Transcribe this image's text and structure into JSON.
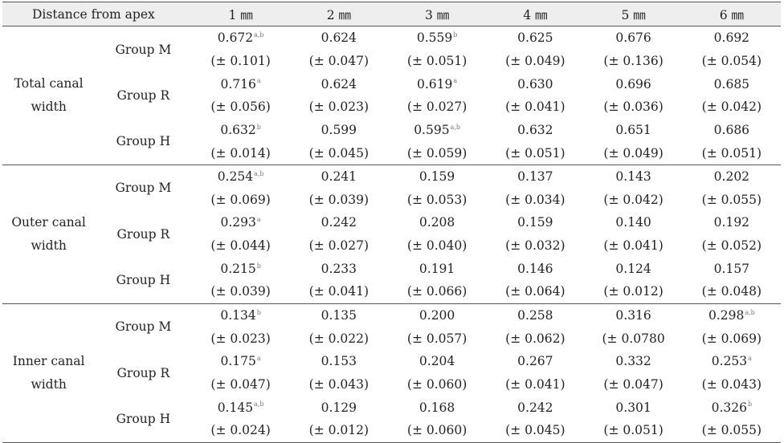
{
  "header": {
    "label": "Distance from apex",
    "distances": [
      "1 ㎜",
      "2 ㎜",
      "3 ㎜",
      "4 ㎜",
      "5 ㎜",
      "6 ㎜"
    ]
  },
  "sections": [
    {
      "metric_line1": "Total canal",
      "metric_line2": "width",
      "groups": [
        {
          "name": "Group M",
          "means": [
            "0.672",
            "0.624",
            "0.559",
            "0.625",
            "0.676",
            "0.692"
          ],
          "sups": [
            "a,b",
            "",
            "b",
            "",
            "",
            ""
          ],
          "sds": [
            "(± 0.101)",
            "(± 0.047)",
            "(± 0.051)",
            "(± 0.049)",
            "(± 0.136)",
            "(± 0.054)"
          ]
        },
        {
          "name": "Group R",
          "means": [
            "0.716",
            "0.624",
            "0.619",
            "0.630",
            "0.696",
            "0.685"
          ],
          "sups": [
            "a",
            "",
            "a",
            "",
            "",
            ""
          ],
          "sds": [
            "(± 0.056)",
            "(± 0.023)",
            "(± 0.027)",
            "(± 0.041)",
            "(± 0.036)",
            "(± 0.042)"
          ]
        },
        {
          "name": "Group H",
          "means": [
            "0.632",
            "0.599",
            "0.595",
            "0.632",
            "0.651",
            "0.686"
          ],
          "sups": [
            "b",
            "",
            "a,b",
            "",
            "",
            ""
          ],
          "sds": [
            "(± 0.014)",
            "(± 0.045)",
            "(± 0.059)",
            "(± 0.051)",
            "(± 0.049)",
            "(± 0.051)"
          ]
        }
      ]
    },
    {
      "metric_line1": "Outer canal",
      "metric_line2": "width",
      "groups": [
        {
          "name": "Group M",
          "means": [
            "0.254",
            "0.241",
            "0.159",
            "0.137",
            "0.143",
            "0.202"
          ],
          "sups": [
            "a,b",
            "",
            "",
            "",
            "",
            ""
          ],
          "sds": [
            "(± 0.069)",
            "(± 0.039)",
            "(± 0.053)",
            "(± 0.034)",
            "(± 0.042)",
            "(± 0.055)"
          ]
        },
        {
          "name": "Group R",
          "means": [
            "0.293",
            "0.242",
            "0.208",
            "0.159",
            "0.140",
            "0.192"
          ],
          "sups": [
            "a",
            "",
            "",
            "",
            "",
            ""
          ],
          "sds": [
            "(± 0.044)",
            "(± 0.027)",
            "(± 0.040)",
            "(± 0.032)",
            "(± 0.041)",
            "(± 0.052)"
          ]
        },
        {
          "name": "Group H",
          "means": [
            "0.215",
            "0.233",
            "0.191",
            "0.146",
            "0.124",
            "0.157"
          ],
          "sups": [
            "b",
            "",
            "",
            "",
            "",
            ""
          ],
          "sds": [
            "(± 0.039)",
            "(± 0.041)",
            "(± 0.066)",
            "(± 0.064)",
            "(± 0.012)",
            "(± 0.048)"
          ]
        }
      ]
    },
    {
      "metric_line1": "Inner canal",
      "metric_line2": "width",
      "groups": [
        {
          "name": "Group M",
          "means": [
            "0.134",
            "0.135",
            "0.200",
            "0.258",
            "0.316",
            "0.298"
          ],
          "sups": [
            "b",
            "",
            "",
            "",
            "",
            "a,b"
          ],
          "sds": [
            "(± 0.023)",
            "(± 0.022)",
            "(± 0.057)",
            "(± 0.062)",
            "(± 0.0780",
            "(± 0.069)"
          ]
        },
        {
          "name": "Group R",
          "means": [
            "0.175",
            "0.153",
            "0.204",
            "0.267",
            "0.332",
            "0.253"
          ],
          "sups": [
            "a",
            "",
            "",
            "",
            "",
            "a"
          ],
          "sds": [
            "(± 0.047)",
            "(± 0.043)",
            "(± 0.060)",
            "(± 0.041)",
            "(± 0.047)",
            "(± 0.043)"
          ]
        },
        {
          "name": "Group H",
          "means": [
            "0.145",
            "0.129",
            "0.168",
            "0.242",
            "0.301",
            "0.326"
          ],
          "sups": [
            "a,b",
            "",
            "",
            "",
            "",
            "b"
          ],
          "sds": [
            "(± 0.024)",
            "(± 0.012)",
            "(± 0.060)",
            "(± 0.045)",
            "(± 0.051)",
            "(± 0.055)"
          ]
        }
      ]
    }
  ]
}
